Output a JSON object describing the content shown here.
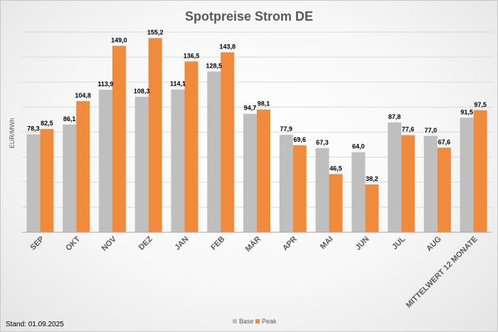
{
  "chart_data": {
    "type": "bar",
    "title": "Spotpreise Strom DE",
    "ylabel": "EUR/MWh",
    "xlabel": "",
    "ylim": [
      0,
      160
    ],
    "grid": true,
    "legend_position": "bottom-center",
    "categories": [
      "SEP",
      "OKT",
      "NOV",
      "DEZ",
      "JAN",
      "FEB",
      "MÄR",
      "APR",
      "MAI",
      "JUN",
      "JUL",
      "AUG",
      "MITTELWERT 12 MONATE"
    ],
    "series": [
      {
        "name": "Base",
        "color": "#bfbfbf",
        "values": [
          78.3,
          86.1,
          113.9,
          108.3,
          114.1,
          128.5,
          94.7,
          77.9,
          67.3,
          64.0,
          87.8,
          77.0,
          91.5
        ],
        "labels": [
          "78,3",
          "86,1",
          "113,9",
          "108,3",
          "114,1",
          "128,5",
          "94,7",
          "77,9",
          "67,3",
          "64,0",
          "87,8",
          "77,0",
          "91,5"
        ]
      },
      {
        "name": "Peak",
        "color": "#f08a3c",
        "values": [
          82.5,
          104.8,
          149.0,
          155.2,
          136.5,
          143.8,
          98.1,
          69.6,
          46.5,
          38.2,
          77.6,
          67.6,
          97.5
        ],
        "labels": [
          "82,5",
          "104,8",
          "149,0",
          "155,2",
          "136,5",
          "143,8",
          "98,1",
          "69,6",
          "46,5",
          "38,2",
          "77,6",
          "67,6",
          "97,5"
        ]
      }
    ]
  },
  "footnote": "Stand: 01.09.2025"
}
